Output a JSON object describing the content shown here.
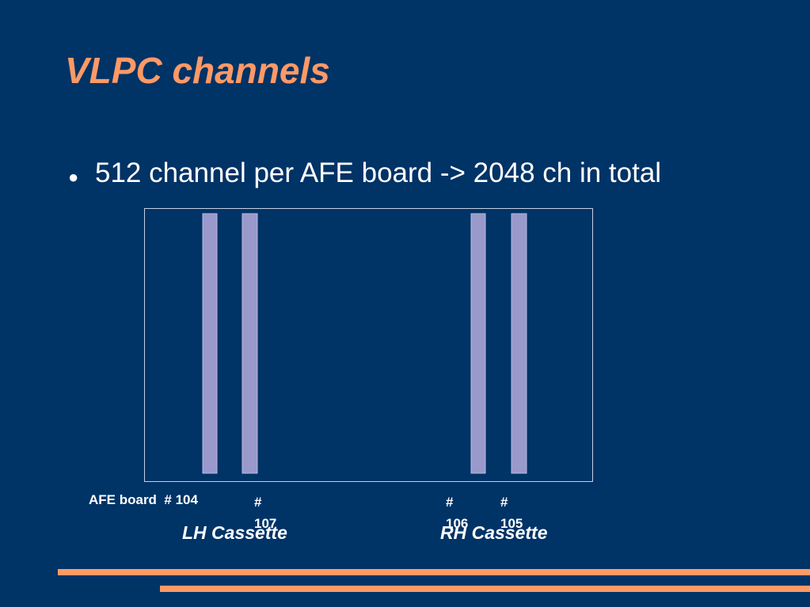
{
  "title": "VLPC channels",
  "bullets": [
    "512 channel per AFE board -> 2048 ch in total"
  ],
  "diagram": {
    "board_labels": [
      "AFE board  # 104",
      "# 107",
      "# 106",
      "# 105"
    ],
    "cassettes": [
      "LH Cassette",
      "RH Cassette"
    ]
  }
}
